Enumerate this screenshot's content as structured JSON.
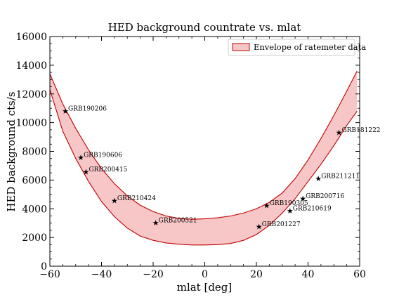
{
  "chart_data": {
    "type": "scatter",
    "title": "HED background countrate vs. mlat",
    "xlabel": "mlat [deg]",
    "ylabel": "HED background cts/s",
    "xlim": [
      -60,
      60
    ],
    "ylim": [
      0,
      16000
    ],
    "xticks": [
      -60,
      -40,
      -20,
      0,
      20,
      40,
      60
    ],
    "yticks": [
      0,
      2000,
      4000,
      6000,
      8000,
      10000,
      12000,
      14000,
      16000
    ],
    "legend": {
      "label": "Envelope of ratemeter data",
      "placement": "top-right"
    },
    "colors": {
      "envelope_fill": "#f7c6c7",
      "envelope_line": "#c00000",
      "marker": "#000000"
    },
    "envelope": {
      "x": [
        -60,
        -55,
        -50,
        -45,
        -40,
        -35,
        -30,
        -25,
        -20,
        -15,
        -10,
        -5,
        0,
        5,
        10,
        15,
        20,
        25,
        30,
        35,
        40,
        45,
        50,
        55,
        59
      ],
      "upper": [
        13400,
        11300,
        9600,
        8100,
        6800,
        5750,
        4900,
        4250,
        3800,
        3500,
        3330,
        3270,
        3300,
        3370,
        3500,
        3700,
        4000,
        4450,
        5100,
        6100,
        7400,
        8900,
        10500,
        12200,
        13600
      ],
      "lower": [
        12300,
        9400,
        7500,
        5900,
        4500,
        3450,
        2650,
        2100,
        1800,
        1620,
        1530,
        1480,
        1480,
        1500,
        1580,
        1800,
        2200,
        2850,
        3700,
        4700,
        5900,
        7100,
        8400,
        9800,
        10800
      ]
    },
    "points": [
      {
        "label": "GRB190206",
        "x": -54,
        "y": 10800
      },
      {
        "label": "GRB190606",
        "x": -48,
        "y": 7550
      },
      {
        "label": "GRB200415",
        "x": -46,
        "y": 6550
      },
      {
        "label": "GRB210424",
        "x": -35,
        "y": 4550
      },
      {
        "label": "GRB200521",
        "x": -19,
        "y": 3000
      },
      {
        "label": "GRB201227",
        "x": 21,
        "y": 2750
      },
      {
        "label": "GRB190305",
        "x": 24,
        "y": 4200
      },
      {
        "label": "GRB210619",
        "x": 33,
        "y": 3850
      },
      {
        "label": "GRB200716",
        "x": 38,
        "y": 4700
      },
      {
        "label": "GRB211211",
        "x": 44,
        "y": 6100
      },
      {
        "label": "GRB181222",
        "x": 52,
        "y": 9300
      }
    ]
  }
}
